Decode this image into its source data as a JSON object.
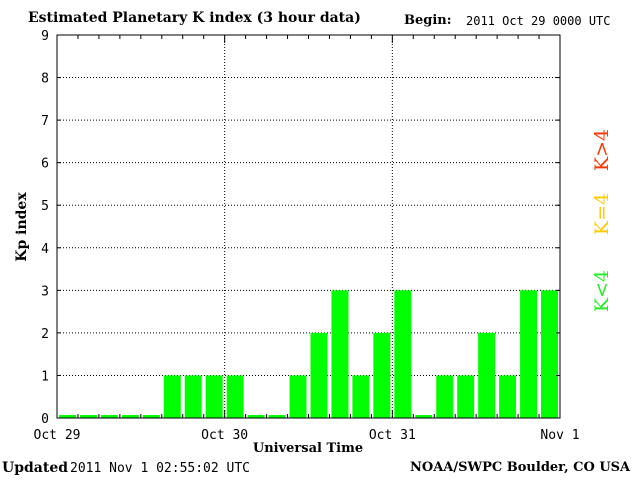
{
  "header": {
    "title": "Estimated Planetary K index (3 hour data)",
    "begin_label": "Begin:",
    "begin_value": "2011 Oct 29 0000 UTC"
  },
  "footer": {
    "updated_label": "Updated",
    "updated_value": "2011 Nov  1 02:55:02 UTC",
    "source": "NOAA/SWPC Boulder, CO USA"
  },
  "legend": [
    {
      "label": "K>4",
      "color": "#ff3300"
    },
    {
      "label": "K=4",
      "color": "#ffcc00"
    },
    {
      "label": "K<4",
      "color": "#22ee22"
    }
  ],
  "colors": {
    "bar": "#00ff00",
    "frame": "#000000",
    "grid": "#000000"
  },
  "chart_data": {
    "type": "bar",
    "xlabel": "Universal Time",
    "ylabel": "Kp index",
    "ylim": [
      0,
      9
    ],
    "yticks": [
      0,
      1,
      2,
      3,
      4,
      5,
      6,
      7,
      8,
      9
    ],
    "x_tick_labels": [
      "Oct 29",
      "Oct 30",
      "Oct 31",
      "Nov 1"
    ],
    "grid": true,
    "legend_position": "right",
    "series": [
      {
        "values": [
          0,
          0,
          0,
          0,
          0,
          1,
          1,
          1,
          1,
          0,
          0,
          1,
          2,
          3,
          1,
          2,
          3,
          0,
          1,
          1,
          2,
          1,
          3,
          3
        ]
      }
    ]
  }
}
